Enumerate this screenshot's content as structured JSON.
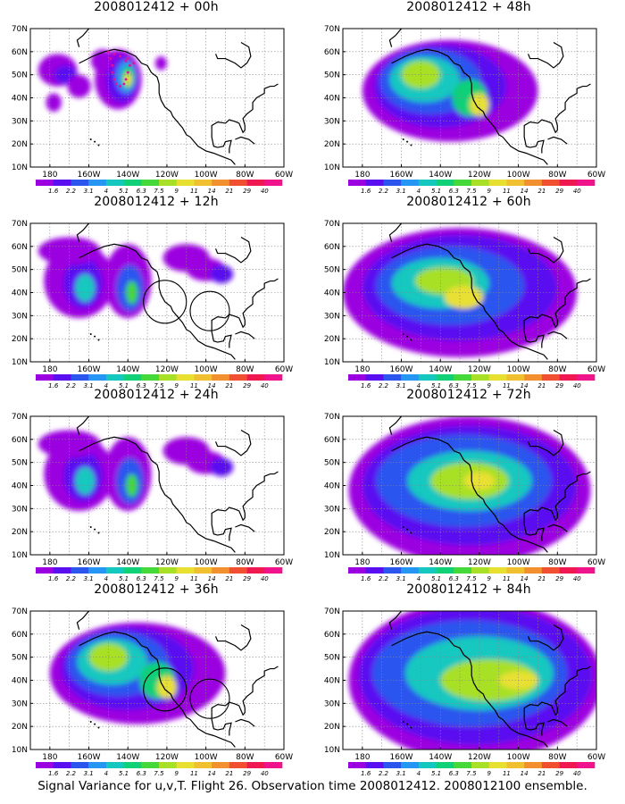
{
  "caption": "Signal Variance for u,v,T. Flight 26. Observation time 2008012412. 2008012100 ensemble.",
  "lat_labels": [
    "10N",
    "20N",
    "30N",
    "40N",
    "50N",
    "60N",
    "70N"
  ],
  "lon_labels": [
    "180",
    "160W",
    "140W",
    "120W",
    "100W",
    "80W",
    "60W"
  ],
  "colorbar": {
    "labels": [
      "1.6",
      "2.2",
      "3.1",
      "4",
      "5.1",
      "6.3",
      "7.5",
      "9",
      "11",
      "14",
      "21",
      "29",
      "40"
    ],
    "colors": [
      "#9b00e0",
      "#5a0ff0",
      "#2c55ee",
      "#2596f2",
      "#14c8c0",
      "#10d078",
      "#44d838",
      "#a8e028",
      "#e8e030",
      "#f0c030",
      "#f29030",
      "#f05030",
      "#f01850",
      "#f0148c"
    ]
  },
  "panels": [
    {
      "title": "2008012412 + 00h",
      "level": 0,
      "circles": false,
      "dots": true
    },
    {
      "title": "2008012412 + 48h",
      "level": 2,
      "circles": false,
      "dots": false
    },
    {
      "title": "2008012412 + 12h",
      "level": 1,
      "circles": true,
      "dots": false
    },
    {
      "title": "2008012412 + 60h",
      "level": 3,
      "circles": false,
      "dots": false
    },
    {
      "title": "2008012412 + 24h",
      "level": 1,
      "circles": false,
      "dots": false
    },
    {
      "title": "2008012412 + 72h",
      "level": 4,
      "circles": false,
      "dots": false
    },
    {
      "title": "2008012412 + 36h",
      "level": 2,
      "circles": true,
      "dots": false
    },
    {
      "title": "2008012412 + 84h",
      "level": 5,
      "circles": false,
      "dots": false
    }
  ]
}
